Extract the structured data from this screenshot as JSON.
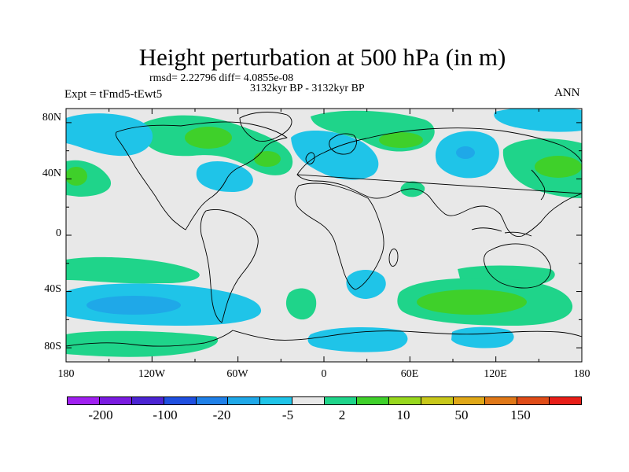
{
  "title": "Height perturbation at 500 hPa (in m)",
  "stats": "rmsd= 2.22796 diff= 4.0855e-08",
  "period": "3132kyr BP - 3132kyr BP",
  "experiment": "Expt = tFmd5-tEwt5",
  "season": "ANN",
  "axes": {
    "lat_ticks": [
      "80N",
      "40N",
      "0",
      "40S",
      "80S"
    ],
    "lon_ticks": [
      "180",
      "120W",
      "60W",
      "0",
      "60E",
      "120E",
      "180"
    ]
  },
  "colorbar": {
    "colors": [
      "#a020f0",
      "#7a1be0",
      "#4b24d3",
      "#1f4fe0",
      "#1f80e8",
      "#1fa8e8",
      "#1fc4e8",
      "#e8e8e8",
      "#1fd48a",
      "#3fd02a",
      "#98d81e",
      "#c8c81a",
      "#e0a818",
      "#e07818",
      "#e04c18",
      "#e81e18"
    ],
    "labels": [
      "-200",
      "-100",
      "-20",
      "-5",
      "2",
      "10",
      "50",
      "150"
    ]
  },
  "map_data": {
    "background": "#e8e8e8",
    "positive_fill": "#1fd48a",
    "positive_core": "#3fd02a",
    "negative_fill": "#1fc4e8",
    "negative_core": "#1fa8e8",
    "coastline": "#000000"
  }
}
